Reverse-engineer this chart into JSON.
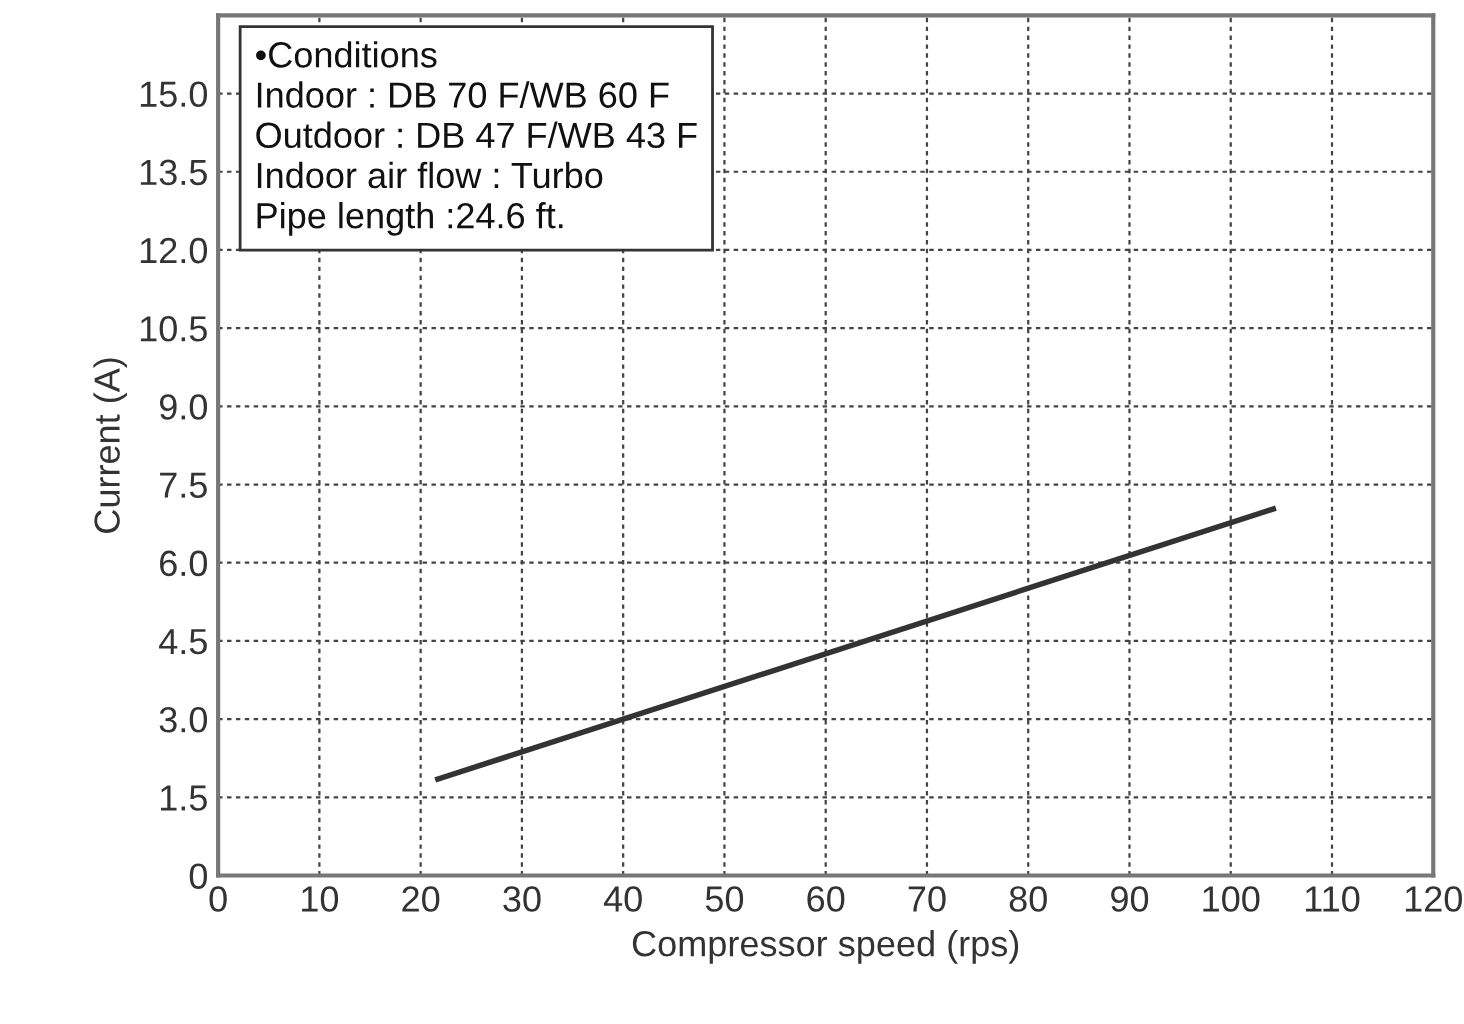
{
  "chart_data": {
    "type": "line",
    "xlabel": "Compressor speed (rps)",
    "ylabel": "Current (A)",
    "x": [
      21.7,
      104.2
    ],
    "series": [
      {
        "color": "#333333",
        "values": [
          1.85,
          7.03
        ]
      }
    ],
    "xlim": [
      0,
      120
    ],
    "xticks": [
      0,
      10,
      20,
      30,
      40,
      50,
      60,
      70,
      80,
      90,
      100,
      110,
      120
    ],
    "ylim": [
      0,
      16.5
    ],
    "yticks": [
      {
        "value": 0,
        "label": "0"
      },
      1.5,
      {
        "value": 3,
        "label": "3.0"
      },
      4.5,
      {
        "value": 6,
        "label": "6.0"
      },
      7.5,
      {
        "value": 9,
        "label": "9.0"
      },
      10.5,
      {
        "value": 12,
        "label": "12.0"
      },
      13.5,
      {
        "value": 15,
        "label": "15.0"
      },
      {
        "value": 16.5,
        "label": null
      }
    ],
    "grid": true,
    "line_style": "solid",
    "marker": "none",
    "annotations": [
      "•Conditions\nIndoor : DB 70 F/WB 60 F\nOutdoor : DB 47 F/WB 43 F\nIndoor air flow : Turbo\nPipe length :24.6 ft."
    ]
  }
}
